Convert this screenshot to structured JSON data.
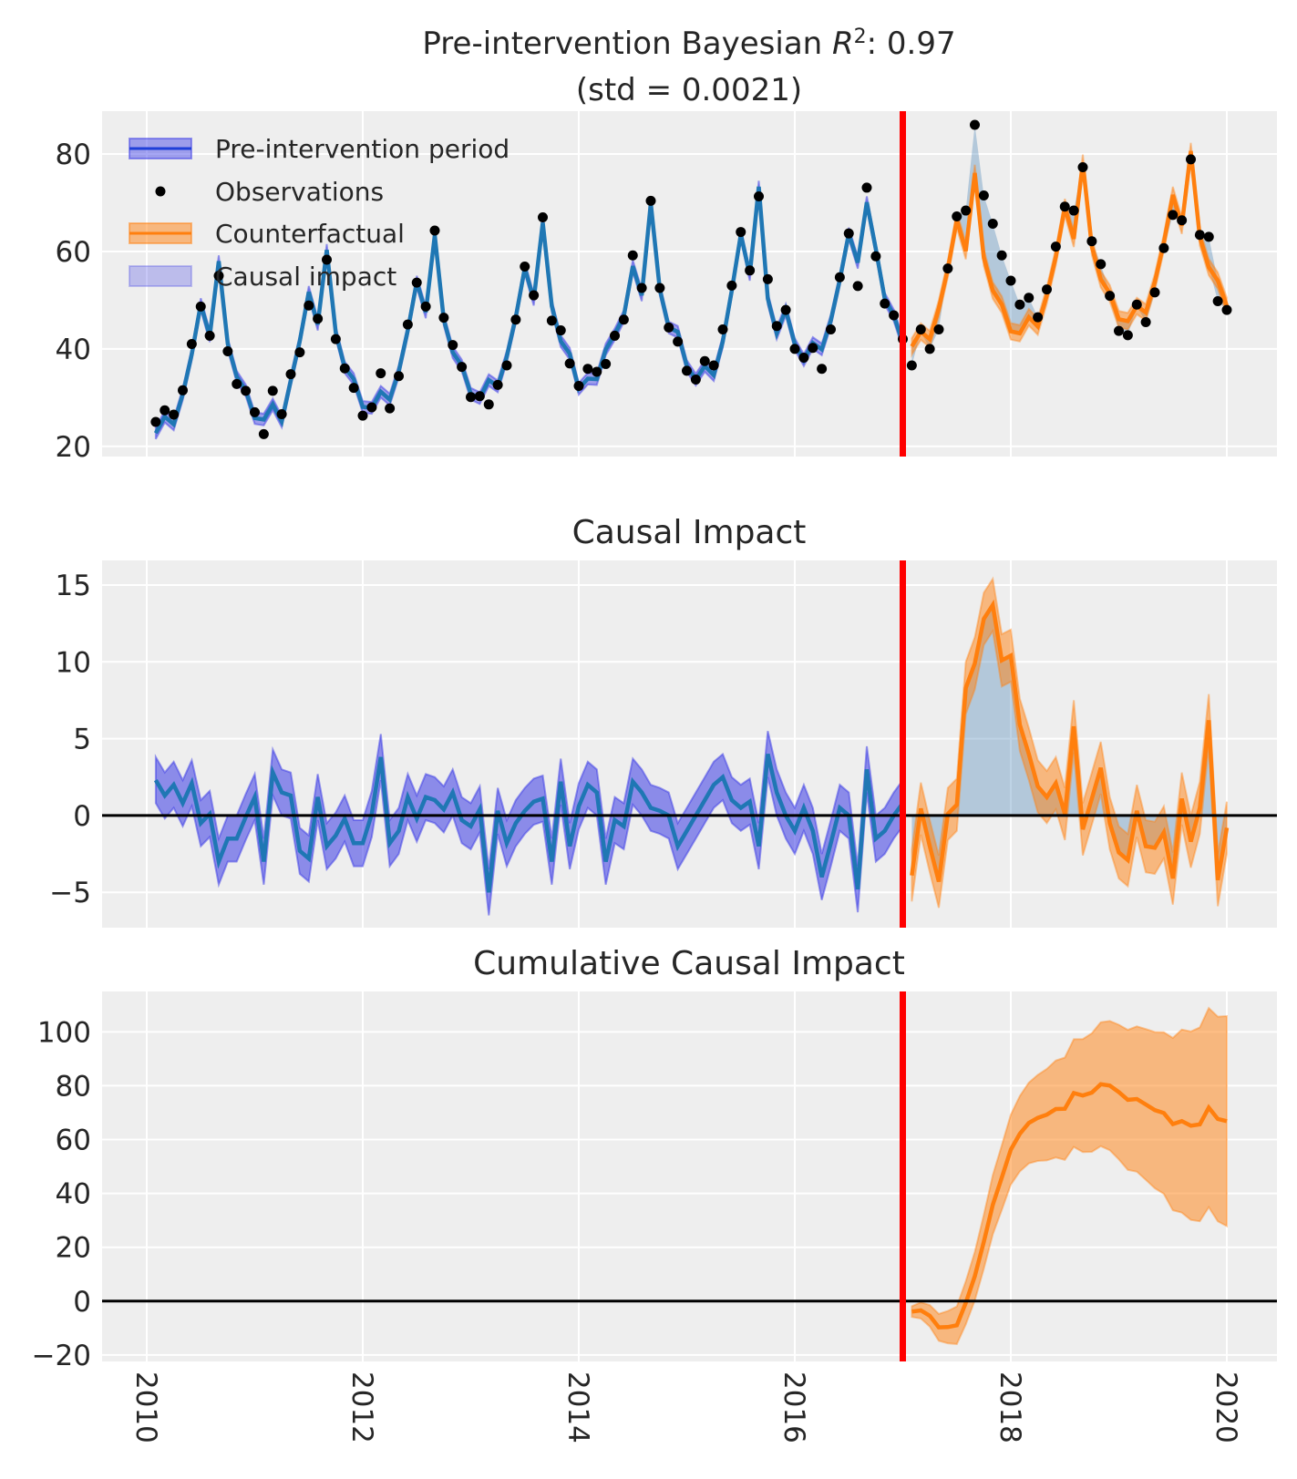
{
  "chart_data": [
    {
      "type": "line",
      "title_parts": {
        "prefix": "Pre-intervention Bayesian ",
        "r": "R",
        "sup": "2",
        "suffix": ": 0.97",
        "line2": "(std = 0.0021)"
      },
      "x_start": "2010-01",
      "x_end": "2019-12",
      "frequency": "monthly",
      "intervention": "2017-01",
      "ylim": [
        17.9,
        88.8
      ],
      "yticks": [
        20,
        40,
        60,
        80
      ],
      "grid": true,
      "legend": {
        "placement": "top-left",
        "entries": [
          "Pre-intervention period",
          "Observations",
          "Counterfactual",
          "Causal impact"
        ]
      },
      "observations": [
        25,
        27.4,
        26.5,
        31.5,
        41,
        48.7,
        42.7,
        55,
        39.5,
        32.8,
        31.4,
        27,
        22.5,
        31.4,
        26.6,
        34.8,
        39.3,
        48.9,
        46.2,
        58.3,
        42,
        36,
        32,
        26.3,
        28,
        35,
        27.8,
        34.4,
        45,
        53.6,
        48.7,
        64.3,
        46.4,
        40.8,
        36.3,
        30.1,
        30.3,
        28.6,
        32.6,
        36.6,
        46,
        56.9,
        51,
        67,
        45.8,
        43.8,
        37,
        32.4,
        35.9,
        35.3,
        36.9,
        42.7,
        46,
        59.2,
        52.5,
        70.4,
        52.5,
        44.4,
        41.5,
        35.5,
        33.7,
        37.5,
        36.6,
        44,
        53,
        64,
        56.1,
        71.3,
        54.3,
        44.7,
        48,
        40,
        38.2,
        40.2,
        35.9,
        44,
        54.7,
        63.7,
        52.9,
        73.1,
        59,
        49.3,
        46.9,
        42,
        36.6,
        44,
        40,
        44,
        56.5,
        67.2,
        68.4,
        86,
        71.5,
        65.7,
        59.2,
        54,
        49.1,
        50.5,
        46.5,
        52.2,
        61,
        69.2,
        68.4,
        77.3,
        62.1,
        57.4,
        50.9,
        43.7,
        42.8,
        49.1,
        45.5,
        51.6,
        60.7,
        67.5,
        66.4,
        78.9,
        63.4,
        63,
        49.8,
        48
      ],
      "hdi_halfwidth_pre": 1.2,
      "hdi_halfwidth_post": 1.7,
      "colors": {
        "pre": "#1f77b4",
        "pre_band": "#3a3ae6",
        "counterfactual": "#ff7f0e",
        "impact_fill": "#4682b4",
        "observations": "#000000",
        "intervention": "#ff0000"
      }
    },
    {
      "type": "line",
      "title": "Causal Impact",
      "ylim": [
        -7.3,
        16.6
      ],
      "yticks": [
        -5,
        0,
        5,
        10,
        15
      ],
      "grid": true,
      "impact": [
        2.3,
        1.3,
        2.0,
        0.8,
        2.1,
        -0.5,
        0.1,
        -3.0,
        -1.5,
        -1.5,
        -0.1,
        1.2,
        -3.0,
        2.8,
        1.5,
        1.3,
        -2.3,
        -2.8,
        1.2,
        -2.0,
        -1.3,
        -0.2,
        -1.8,
        -1.8,
        0.1,
        3.8,
        -1.8,
        -1.0,
        1.2,
        -0.2,
        1.2,
        1.0,
        0.4,
        1.5,
        -0.3,
        -0.7,
        0.4,
        -5.0,
        0.3,
        -1.8,
        -0.5,
        0.3,
        0.9,
        1.1,
        -3.0,
        2.2,
        -2.0,
        0.6,
        2.0,
        1.5,
        -3.0,
        -0.3,
        -0.7,
        2.2,
        1.5,
        0.5,
        0.3,
        0.0,
        -2.0,
        -1.0,
        0.0,
        1.0,
        2.0,
        2.5,
        1.0,
        0.5,
        0.9,
        -2.0,
        4.0,
        1.5,
        0.0,
        -1.0,
        0.5,
        -1.0,
        -4.0,
        -1.8,
        0.5,
        0.0,
        -4.8,
        3.0,
        -1.5,
        -1.0,
        0.0,
        0.8,
        -3.9,
        0.45,
        -2.0,
        -4.3,
        0.1,
        0.7,
        8.3,
        9.9,
        12.8,
        13.7,
        10.1,
        10.4,
        5.9,
        4.0,
        1.9,
        1.2,
        2.1,
        0.1,
        5.8,
        -0.9,
        1.1,
        3.1,
        -0.5,
        -2.4,
        -2.9,
        0.3,
        -2.0,
        -2.1,
        -1.1,
        -4.1,
        1.1,
        -1.7,
        0.5,
        6.2,
        -4.2,
        -0.8
      ],
      "hdi_halfwidth_pre": 1.5,
      "hdi_halfwidth_post": 1.7
    },
    {
      "type": "line",
      "title": "Cumulative Causal Impact",
      "ylim": [
        -22.4,
        115
      ],
      "yticks": [
        -20,
        0,
        20,
        40,
        60,
        80,
        100
      ],
      "xticks": [
        "2010",
        "2012",
        "2014",
        "2016",
        "2018",
        "2020"
      ],
      "grid": true,
      "cumulative_impact": [
        -3.9,
        -3.45,
        -5.45,
        -9.75,
        -9.65,
        -8.95,
        -0.65,
        9.25,
        22.05,
        35.75,
        45.85,
        56.25,
        62.15,
        66.15,
        68.05,
        69.25,
        71.35,
        71.45,
        77.25,
        76.35,
        77.45,
        80.55,
        80.05,
        77.65,
        74.75,
        75.05,
        73.05,
        70.95,
        69.85,
        65.75,
        66.85,
        65.15,
        65.65,
        71.85,
        67.65,
        66.85
      ],
      "hdi_halfwidth": [
        2,
        3,
        4,
        5,
        6,
        7,
        8,
        9,
        10,
        11,
        12,
        13,
        14,
        15,
        16,
        17,
        18,
        19,
        20,
        21,
        22,
        23,
        24,
        25,
        26,
        27,
        28,
        29,
        30,
        32,
        34,
        35,
        36,
        37,
        38,
        39
      ]
    }
  ]
}
